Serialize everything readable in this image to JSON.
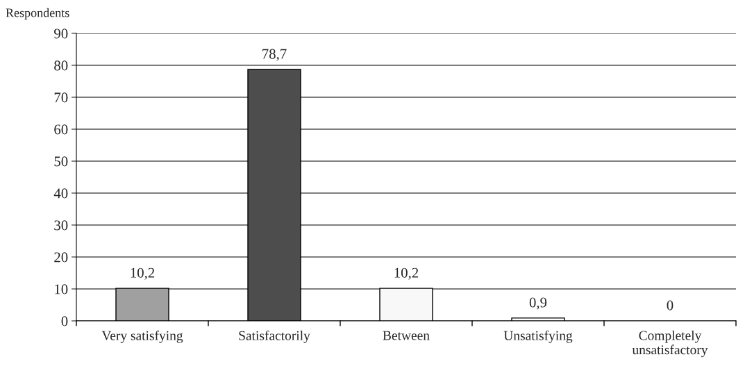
{
  "chart_data": {
    "type": "bar",
    "ylabel": "Respondents",
    "categories": [
      "Very satisfying",
      "Satisfactorily",
      "Between",
      "Unsatisfying",
      "Completely\nunsatisfactory"
    ],
    "values": [
      10.2,
      78.7,
      10.2,
      0.9,
      0
    ],
    "colors": [
      "#a0a0a0",
      "#4d4d4d",
      "#f8f8f8",
      "#ffffff",
      "#ffffff"
    ],
    "value_labels": [
      "10,2",
      "78,7",
      "10,2",
      "0,9",
      "0"
    ],
    "ylim": [
      0,
      90
    ],
    "yticks": [
      0,
      10,
      20,
      30,
      40,
      50,
      60,
      70,
      80,
      90
    ],
    "grid": "y",
    "legend": false
  }
}
